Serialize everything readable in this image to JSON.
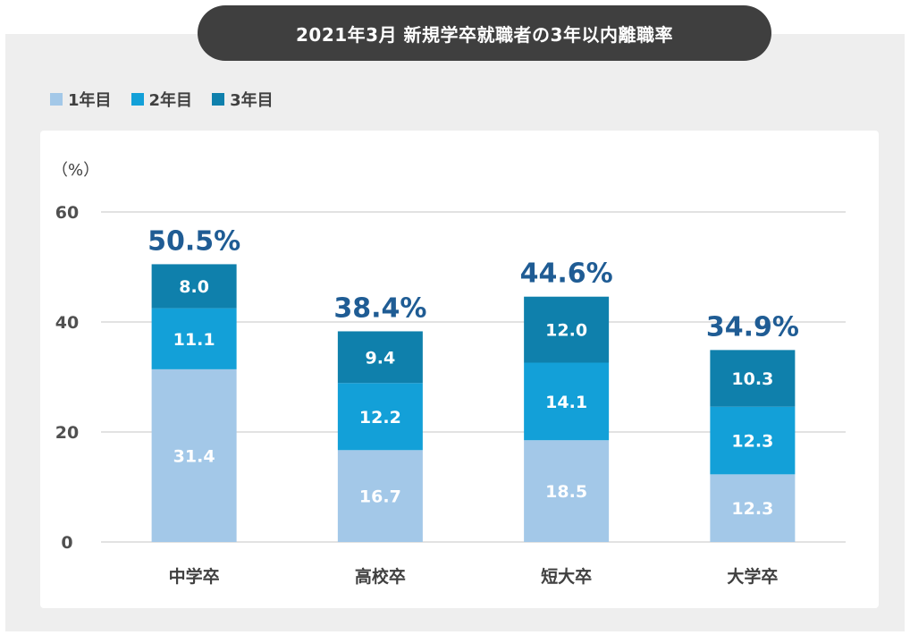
{
  "title": "2021年3月 新規学卒就職者の3年以内離職率",
  "legend": [
    {
      "label": "1年目",
      "color": "#a3c8e8"
    },
    {
      "label": "2年目",
      "color": "#13a0d8"
    },
    {
      "label": "3年目",
      "color": "#0f80ac"
    }
  ],
  "chart_data": {
    "type": "bar",
    "stacked": true,
    "unit_label": "（%）",
    "categories": [
      "中学卒",
      "高校卒",
      "短大卒",
      "大学卒"
    ],
    "series": [
      {
        "name": "1年目",
        "values": [
          31.4,
          16.7,
          18.5,
          12.3
        ],
        "color": "#a3c8e8"
      },
      {
        "name": "2年目",
        "values": [
          11.1,
          12.2,
          14.1,
          12.3
        ],
        "color": "#13a0d8"
      },
      {
        "name": "3年目",
        "values": [
          8.0,
          9.4,
          12.0,
          10.3
        ],
        "color": "#0f80ac"
      }
    ],
    "value_labels": [
      [
        "31.4",
        "16.7",
        "18.5",
        "12.3"
      ],
      [
        "11.1",
        "12.2",
        "14.1",
        "12.3"
      ],
      [
        "8.0",
        "9.4",
        "12.0",
        "10.3"
      ]
    ],
    "totals": [
      "50.5%",
      "38.4%",
      "44.6%",
      "34.9%"
    ],
    "total_label_color": "#1f5c94",
    "yticks": [
      0,
      20,
      40,
      60
    ],
    "ylim": [
      0,
      60
    ],
    "grid": true
  }
}
